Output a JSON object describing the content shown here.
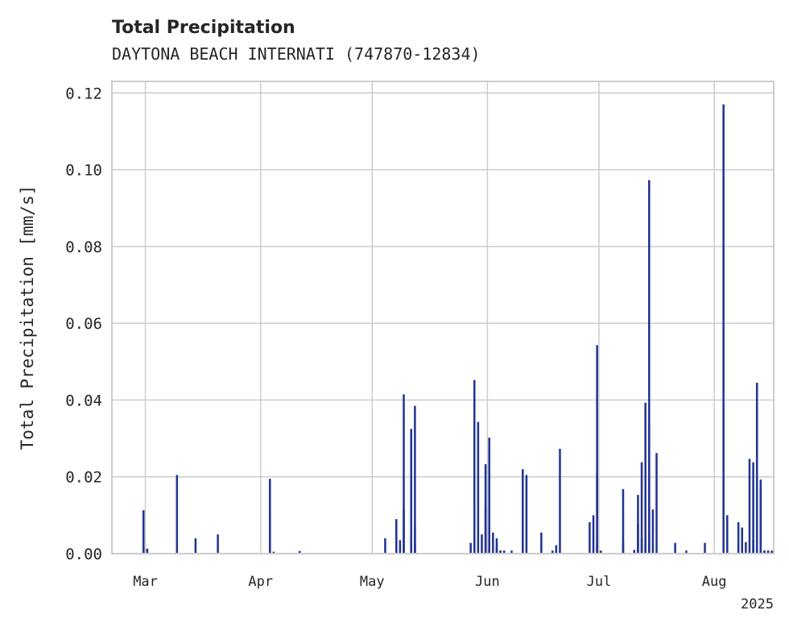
{
  "chart_data": {
    "type": "bar",
    "title": "Total Precipitation",
    "subtitle": "DAYTONA BEACH INTERNATI (747870-12834)",
    "xlabel": "",
    "ylabel": "Total Precipitation [mm/s]",
    "x_range": [
      "2025-02-20",
      "2025-08-17"
    ],
    "ylim": [
      0,
      0.123
    ],
    "yticks": [
      0.0,
      0.02,
      0.04,
      0.06,
      0.08,
      0.1,
      0.12
    ],
    "ytick_labels": [
      "0.00",
      "0.02",
      "0.04",
      "0.06",
      "0.08",
      "0.10",
      "0.12"
    ],
    "xticks": [
      "2025-03-01",
      "2025-04-01",
      "2025-05-01",
      "2025-06-01",
      "2025-07-01",
      "2025-08-01"
    ],
    "xtick_labels": [
      "Mar",
      "Apr",
      "May",
      "Jun",
      "Jul",
      "Aug"
    ],
    "x_offset_label": "2025",
    "grid": true,
    "bar_color": "#233494",
    "series": [
      {
        "x": [
          "2025-02-28",
          "2025-02-28",
          "2025-03-01",
          "2025-03-09",
          "2025-03-14",
          "2025-03-20",
          "2025-04-03",
          "2025-04-03",
          "2025-04-04",
          "2025-04-11",
          "2025-05-04",
          "2025-05-07",
          "2025-05-07",
          "2025-05-08",
          "2025-05-09",
          "2025-05-09",
          "2025-05-11",
          "2025-05-11",
          "2025-05-12",
          "2025-05-12",
          "2025-05-12",
          "2025-05-27",
          "2025-05-28",
          "2025-05-28",
          "2025-05-29",
          "2025-05-30",
          "2025-05-31",
          "2025-05-31",
          "2025-06-01",
          "2025-06-01",
          "2025-06-02",
          "2025-06-03",
          "2025-06-03",
          "2025-06-04",
          "2025-06-04",
          "2025-06-05",
          "2025-06-07",
          "2025-06-10",
          "2025-06-11",
          "2025-06-15",
          "2025-06-18",
          "2025-06-19",
          "2025-06-20",
          "2025-06-28",
          "2025-06-29",
          "2025-06-30",
          "2025-06-30",
          "2025-06-30",
          "2025-07-01",
          "2025-07-07",
          "2025-07-07",
          "2025-07-10",
          "2025-07-11",
          "2025-07-11",
          "2025-07-12",
          "2025-07-12",
          "2025-07-13",
          "2025-07-13",
          "2025-07-13",
          "2025-07-14",
          "2025-07-14",
          "2025-07-14",
          "2025-07-15",
          "2025-07-16",
          "2025-07-21",
          "2025-07-24",
          "2025-07-29",
          "2025-08-03",
          "2025-08-04",
          "2025-08-07",
          "2025-08-08",
          "2025-08-09",
          "2025-08-10",
          "2025-08-11",
          "2025-08-11",
          "2025-08-12",
          "2025-08-12",
          "2025-08-13",
          "2025-08-13",
          "2025-08-13",
          "2025-08-14",
          "2025-08-14",
          "2025-08-15",
          "2025-08-15",
          "2025-08-16"
        ],
        "values": [
          0.002,
          0.0113,
          0.0013,
          0.0205,
          0.004,
          0.005,
          0.01,
          0.0195,
          0.0005,
          0.0007,
          0.004,
          0.004,
          0.009,
          0.0035,
          0.0115,
          0.0415,
          0.004,
          0.0325,
          0.0385,
          0.007,
          0.0025,
          0.0028,
          0.0125,
          0.0452,
          0.0343,
          0.005,
          0.0233,
          0.012,
          0.0302,
          0.002,
          0.0055,
          0.004,
          0.002,
          0.0008,
          0.0008,
          0.0008,
          0.0008,
          0.022,
          0.0205,
          0.0055,
          0.0008,
          0.0022,
          0.0273,
          0.0082,
          0.01,
          0.0543,
          0.0028,
          0.021,
          0.0008,
          0.0168,
          0.003,
          0.001,
          0.0077,
          0.0153,
          0.004,
          0.0238,
          0.0025,
          0.0393,
          0.004,
          0.0973,
          0.006,
          0.0337,
          0.0115,
          0.0262,
          0.0028,
          0.0008,
          0.0028,
          0.117,
          0.01,
          0.0082,
          0.0068,
          0.003,
          0.0247,
          0.0035,
          0.0238,
          0.002,
          0.0445,
          0.0193,
          0.017,
          0.0008,
          0.0008,
          0.0008,
          0.0008,
          0.0008,
          0.0008
        ]
      }
    ]
  }
}
